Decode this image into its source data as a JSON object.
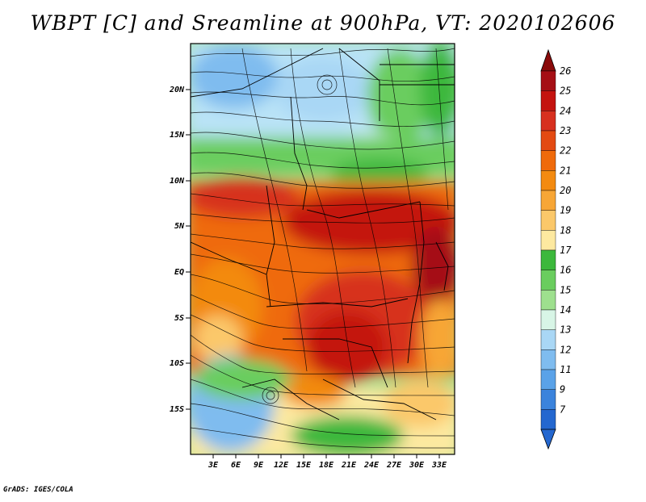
{
  "title": "WBPT [C] and Sreamline at 900hPa, VT: 2020102606",
  "footer": "GrADS: IGES/COLA",
  "map": {
    "lat_ticks": [
      "20N",
      "15N",
      "10N",
      "5N",
      "EQ",
      "5S",
      "10S",
      "15S"
    ],
    "lon_ticks": [
      "3E",
      "6E",
      "9E",
      "12E",
      "15E",
      "18E",
      "21E",
      "24E",
      "27E",
      "30E",
      "33E"
    ]
  },
  "colorbar": {
    "labels": [
      "26",
      "25",
      "24",
      "23",
      "22",
      "21",
      "20",
      "19",
      "18",
      "17",
      "16",
      "15",
      "14",
      "13",
      "12",
      "11",
      "9",
      "7"
    ],
    "colors": [
      "#a50f15",
      "#c4130f",
      "#d7301f",
      "#e34a12",
      "#ef6a0b",
      "#f38a10",
      "#f7a636",
      "#fbc86a",
      "#fde9a0",
      "#3cb83c",
      "#6acd5e",
      "#9ee08e",
      "#d8f5e6",
      "#a9d7f5",
      "#7fbcef",
      "#5aa2e8",
      "#3b83dc",
      "#2467cf"
    ],
    "bottom_color": "#2467cf",
    "top_color": "#8a0a0a"
  }
}
